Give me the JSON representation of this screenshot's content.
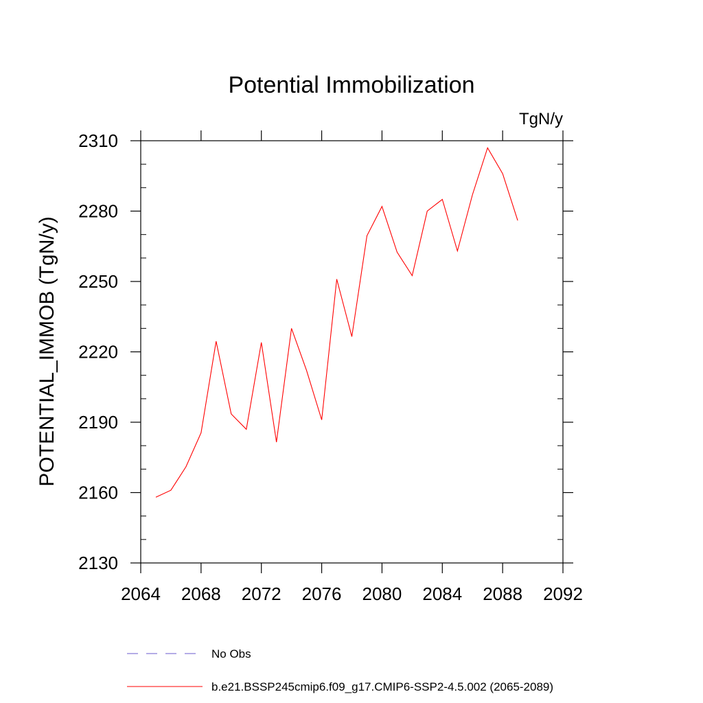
{
  "chart_data": {
    "type": "line",
    "title": "Potential Immobilization",
    "units_label": "TgN/y",
    "ylabel": "POTENTIAL_IMMOB  (TgN/y)",
    "xlabel": "",
    "xlim": [
      2064,
      2092
    ],
    "ylim": [
      2130,
      2310
    ],
    "xticks": [
      2064,
      2068,
      2072,
      2076,
      2080,
      2084,
      2088,
      2092
    ],
    "yticks": [
      2130,
      2160,
      2190,
      2220,
      2250,
      2280,
      2310
    ],
    "series": [
      {
        "name": "b.e21.BSSP245cmip6.f09_g17.CMIP6-SSP2-4.5.002 (2065-2089)",
        "color": "#ff0000",
        "style": "solid",
        "x": [
          2065,
          2066,
          2067,
          2068,
          2069,
          2070,
          2071,
          2072,
          2073,
          2074,
          2075,
          2076,
          2077,
          2078,
          2079,
          2080,
          2081,
          2082,
          2083,
          2084,
          2085,
          2086,
          2087,
          2088,
          2089
        ],
        "values": [
          2158,
          2161,
          2171,
          2185.5,
          2224.5,
          2193.5,
          2187,
          2224,
          2181.5,
          2230,
          2212,
          2191,
          2251,
          2226.5,
          2269.5,
          2282,
          2262.5,
          2252.5,
          2280,
          2285,
          2263,
          2287,
          2307,
          2296,
          2276
        ]
      }
    ],
    "legend": {
      "position": "bottom",
      "entries": [
        {
          "label": "No Obs",
          "color": "#6a5acd",
          "style": "dashed"
        },
        {
          "label": "b.e21.BSSP245cmip6.f09_g17.CMIP6-SSP2-4.5.002 (2065-2089)",
          "color": "#ff0000",
          "style": "solid"
        }
      ]
    }
  }
}
